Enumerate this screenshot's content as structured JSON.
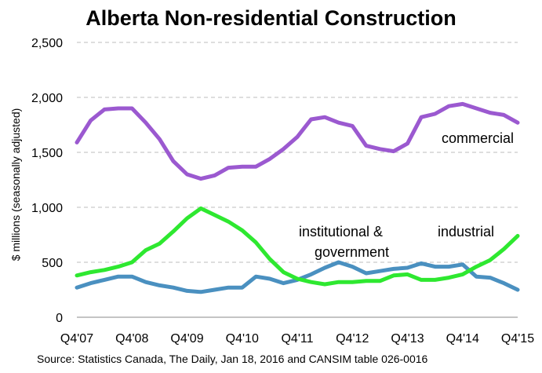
{
  "chart_data": {
    "type": "line",
    "title": "Alberta Non-residential Construction",
    "ylabel": "$ millions (seasonally adjusted)",
    "xlabel": "",
    "ylim": [
      0,
      2500
    ],
    "yticks": [
      0,
      500,
      1000,
      1500,
      2000,
      2500
    ],
    "ytick_labels": [
      "0",
      "500",
      "1,000",
      "1,500",
      "2,000",
      "2,500"
    ],
    "xtick_labels": [
      "Q4'07",
      "Q4'08",
      "Q4'09",
      "Q4'10",
      "Q4'11",
      "Q4'12",
      "Q4'13",
      "Q4'14",
      "Q4'15"
    ],
    "grid": "horizontal",
    "legend": "none",
    "source": "Source: Statistics Canada, The Daily, Jan 18, 2016 and CANSIM table 026-0016",
    "series": [
      {
        "name": "commercial",
        "color": "#9b59d0",
        "values": [
          1590,
          1790,
          1890,
          1900,
          1900,
          1770,
          1620,
          1420,
          1300,
          1260,
          1290,
          1360,
          1370,
          1370,
          1440,
          1530,
          1640,
          1800,
          1820,
          1770,
          1740,
          1560,
          1530,
          1510,
          1580,
          1820,
          1850,
          1920,
          1940,
          1900,
          1860,
          1840,
          1770
        ]
      },
      {
        "name": "industrial",
        "color": "#2ee830",
        "values": [
          380,
          410,
          430,
          460,
          500,
          610,
          670,
          780,
          900,
          990,
          930,
          870,
          790,
          680,
          530,
          410,
          350,
          320,
          300,
          320,
          320,
          330,
          330,
          380,
          390,
          340,
          340,
          360,
          390,
          460,
          520,
          620,
          740
        ]
      },
      {
        "name": "institutional & government",
        "color": "#4a90c0",
        "values": [
          270,
          310,
          340,
          370,
          370,
          320,
          290,
          270,
          240,
          230,
          250,
          270,
          270,
          370,
          350,
          310,
          340,
          390,
          450,
          500,
          460,
          400,
          420,
          440,
          450,
          490,
          460,
          460,
          480,
          370,
          360,
          310,
          250
        ]
      }
    ],
    "annotations": [
      {
        "series": "commercial",
        "text": "commercial"
      },
      {
        "series": "industrial",
        "text": "industrial"
      },
      {
        "series": "institutional & government",
        "lines": [
          "institutional &",
          "government"
        ]
      }
    ]
  }
}
